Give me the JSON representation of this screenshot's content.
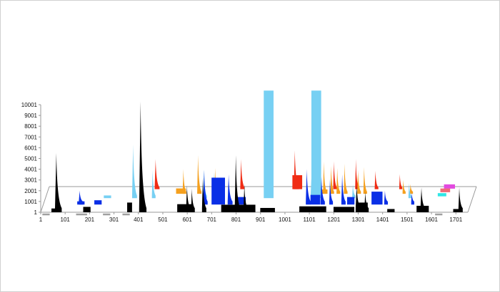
{
  "chart_data": {
    "type": "area",
    "style": "3d-ribbon",
    "title": "",
    "xlabel": "",
    "ylabel": "",
    "grid": false,
    "legend": "none",
    "xlim": [
      1,
      1750
    ],
    "ylim": [
      1,
      10001
    ],
    "x_ticks": [
      "1",
      "101",
      "201",
      "301",
      "401",
      "501",
      "601",
      "701",
      "801",
      "901",
      "1001",
      "1101",
      "1201",
      "1301",
      "1401",
      "1501",
      "1601",
      "1701"
    ],
    "y_ticks": [
      "1",
      "1001",
      "2001",
      "3001",
      "4001",
      "5001",
      "6001",
      "7001",
      "8001",
      "9001",
      "10001"
    ],
    "colors": {
      "black": "#000000",
      "blue": "#0a2fe6",
      "sky": "#77d0f3",
      "orange": "#f5a01e",
      "red": "#f02c14",
      "gray": "#a0a0a0",
      "magenta": "#e24adf",
      "pink": "#f06a78",
      "cyan": "#2fe6e6"
    },
    "series": [
      {
        "color": "black",
        "depth": 0.0,
        "peaks": [
          [
            65,
            950,
            5500,
            22
          ],
          [
            410,
            950,
            10300,
            24
          ],
          [
            600,
            950,
            2500,
            14
          ],
          [
            620,
            950,
            2200,
            12
          ],
          [
            665,
            950,
            3200,
            14
          ],
          [
            800,
            950,
            5300,
            18
          ],
          [
            835,
            950,
            2600,
            14
          ],
          [
            1295,
            950,
            2500,
            18
          ],
          [
            1330,
            950,
            1900,
            14
          ],
          [
            1560,
            950,
            2300,
            16
          ],
          [
            1715,
            950,
            2300,
            14
          ]
        ],
        "blocks": [
          [
            45,
            85,
            350
          ],
          [
            175,
            205,
            500
          ],
          [
            355,
            375,
            900
          ],
          [
            560,
            620,
            750
          ],
          [
            740,
            880,
            700
          ],
          [
            900,
            960,
            400
          ],
          [
            1060,
            1170,
            550
          ],
          [
            1200,
            1285,
            500
          ],
          [
            1300,
            1340,
            900
          ],
          [
            1420,
            1450,
            300
          ],
          [
            1540,
            1590,
            600
          ],
          [
            1690,
            1720,
            300
          ]
        ]
      },
      {
        "color": "blue",
        "depth": 0.3,
        "peaks": [
          [
            150,
            700,
            1300,
            14
          ],
          [
            660,
            700,
            3200,
            14
          ],
          [
            760,
            700,
            2800,
            16
          ],
          [
            1080,
            700,
            3300,
            16
          ],
          [
            1140,
            700,
            2600,
            14
          ],
          [
            1175,
            700,
            2400,
            12
          ],
          [
            1225,
            700,
            2800,
            14
          ],
          [
            1400,
            700,
            1300,
            12
          ],
          [
            1510,
            700,
            1100,
            10
          ]
        ],
        "blocks": [
          [
            140,
            170,
            300
          ],
          [
            210,
            240,
            400
          ],
          [
            690,
            745,
            2500
          ],
          [
            790,
            830,
            700
          ],
          [
            1095,
            1135,
            900
          ],
          [
            1245,
            1275,
            700
          ],
          [
            1345,
            1390,
            1200
          ]
        ]
      },
      {
        "color": "sky",
        "depth": 0.55,
        "peaks": [
          [
            360,
            600,
            5000,
            16
          ],
          [
            440,
            600,
            2600,
            12
          ],
          [
            650,
            600,
            2700,
            12
          ],
          [
            690,
            600,
            2400,
            12
          ],
          [
            1090,
            600,
            1800,
            12
          ],
          [
            1115,
            600,
            1500,
            12
          ],
          [
            1260,
            600,
            1300,
            10
          ],
          [
            1490,
            600,
            1400,
            10
          ]
        ],
        "blocks": [
          [
            240,
            270,
            250
          ],
          [
            895,
            935,
            10001
          ],
          [
            1090,
            1130,
            10001
          ]
        ]
      },
      {
        "color": "orange",
        "depth": 0.72,
        "peaks": [
          [
            560,
            500,
            2300,
            12
          ],
          [
            620,
            500,
            3600,
            14
          ],
          [
            690,
            500,
            2400,
            12
          ],
          [
            1090,
            500,
            2800,
            12
          ],
          [
            1135,
            500,
            3000,
            12
          ],
          [
            1165,
            500,
            2600,
            12
          ],
          [
            1190,
            500,
            2400,
            12
          ],
          [
            1220,
            500,
            2800,
            12
          ],
          [
            1275,
            500,
            2200,
            12
          ],
          [
            1300,
            500,
            2500,
            12
          ],
          [
            1460,
            500,
            1300,
            10
          ],
          [
            1490,
            500,
            900,
            10
          ]
        ],
        "blocks": [
          [
            530,
            570,
            500
          ],
          [
            1120,
            1150,
            400
          ]
        ]
      },
      {
        "color": "red",
        "depth": 0.9,
        "peaks": [
          [
            440,
            400,
            2800,
            16
          ],
          [
            790,
            400,
            2800,
            14
          ],
          [
            1010,
            400,
            3600,
            16
          ],
          [
            1170,
            400,
            2600,
            12
          ],
          [
            1260,
            400,
            2800,
            12
          ],
          [
            1340,
            400,
            1700,
            12
          ],
          [
            1440,
            400,
            1400,
            10
          ]
        ],
        "blocks": [
          [
            1000,
            1040,
            1300
          ]
        ]
      },
      {
        "color": "gray",
        "depth": -0.12,
        "peaks": [],
        "blocks": [
          [
            12,
            42,
            150
          ],
          [
            150,
            195,
            150
          ],
          [
            260,
            290,
            150
          ],
          [
            340,
            370,
            150
          ],
          [
            1620,
            1650,
            150
          ]
        ]
      },
      {
        "color": "magenta",
        "depth": 0.92,
        "peaks": [],
        "blocks": [
          [
            1620,
            1665,
            400
          ]
        ]
      },
      {
        "color": "pink",
        "depth": 0.78,
        "peaks": [],
        "blocks": [
          [
            1610,
            1650,
            350
          ]
        ]
      },
      {
        "color": "cyan",
        "depth": 0.62,
        "peaks": [],
        "blocks": [
          [
            1605,
            1640,
            300
          ]
        ]
      }
    ]
  }
}
